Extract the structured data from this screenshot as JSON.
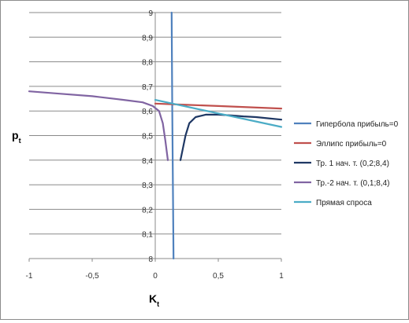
{
  "chart_data": {
    "type": "line",
    "xlabel": "K",
    "xlabel_sub": "t",
    "ylabel": "p",
    "ylabel_sub": "t",
    "xlim": [
      -1,
      1
    ],
    "ylim": [
      8,
      9
    ],
    "x_ticks": [
      -1,
      -0.5,
      0,
      0.5,
      1
    ],
    "x_tick_labels": [
      "-1",
      "-0,5",
      "0",
      "0,5",
      "1"
    ],
    "y_ticks": [
      8,
      8.1,
      8.2,
      8.3,
      8.4,
      8.5,
      8.6,
      8.7,
      8.8,
      8.9,
      9
    ],
    "y_tick_labels": [
      "8",
      "8,1",
      "8,2",
      "8,3",
      "8,4",
      "8,5",
      "8,6",
      "8,7",
      "8,8",
      "8,9",
      "9"
    ],
    "grid": "horizontal",
    "legend_position": "right",
    "series": [
      {
        "name": "Гипербола прибыль=0",
        "color": "#4f81bd",
        "points": [
          [
            0.13,
            9.0
          ],
          [
            0.135,
            8.6
          ],
          [
            0.14,
            8.3
          ],
          [
            0.145,
            8.0
          ]
        ]
      },
      {
        "name": "Эллипс прибыль=0",
        "color": "#c0504d",
        "points": [
          [
            0.0,
            8.63
          ],
          [
            0.25,
            8.625
          ],
          [
            0.5,
            8.62
          ],
          [
            0.75,
            8.615
          ],
          [
            1.0,
            8.61
          ]
        ]
      },
      {
        "name": "Тр. 1 нач. т. (0,2;8,4)",
        "color": "#1f3864",
        "points": [
          [
            0.2,
            8.4
          ],
          [
            0.22,
            8.45
          ],
          [
            0.24,
            8.5
          ],
          [
            0.27,
            8.55
          ],
          [
            0.32,
            8.575
          ],
          [
            0.4,
            8.585
          ],
          [
            0.5,
            8.585
          ],
          [
            0.6,
            8.582
          ],
          [
            0.7,
            8.578
          ],
          [
            0.8,
            8.575
          ],
          [
            0.9,
            8.57
          ],
          [
            1.0,
            8.565
          ]
        ]
      },
      {
        "name": "Тр.-2 нач. т. (0,1;8,4)",
        "color": "#8064a2",
        "points": [
          [
            -1.0,
            8.68
          ],
          [
            -0.75,
            8.67
          ],
          [
            -0.5,
            8.66
          ],
          [
            -0.25,
            8.645
          ],
          [
            -0.1,
            8.635
          ],
          [
            -0.02,
            8.62
          ],
          [
            0.03,
            8.6
          ],
          [
            0.06,
            8.55
          ],
          [
            0.08,
            8.48
          ],
          [
            0.1,
            8.4
          ]
        ]
      },
      {
        "name": "Прямая спроса",
        "color": "#4bacc6",
        "points": [
          [
            0.0,
            8.645
          ],
          [
            1.0,
            8.535
          ]
        ]
      }
    ]
  }
}
